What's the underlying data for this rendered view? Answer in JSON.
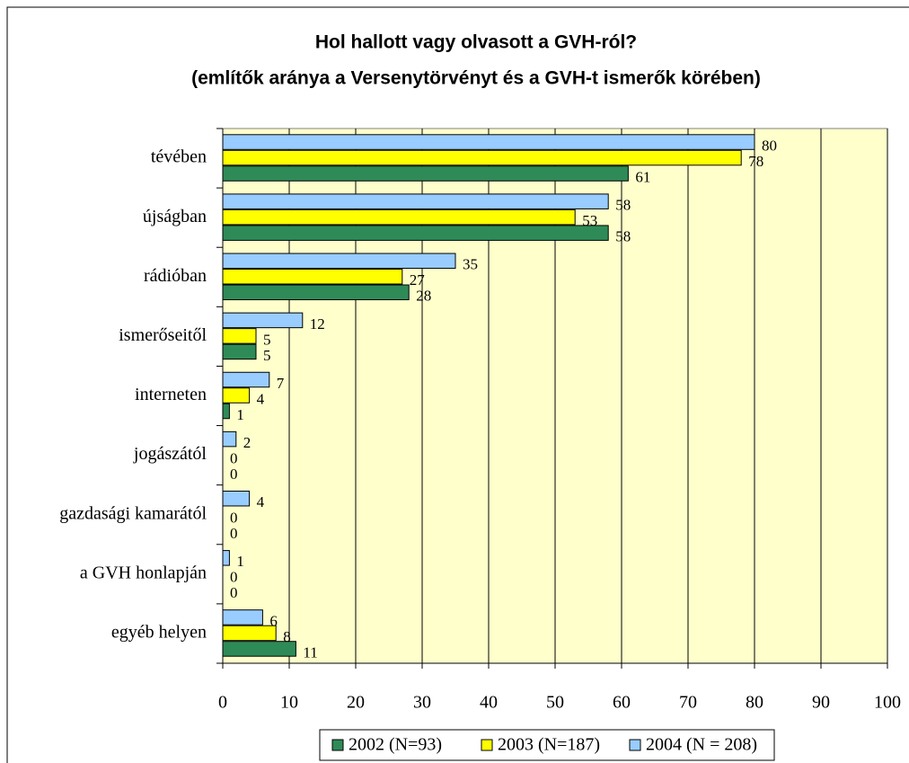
{
  "chart_data": {
    "type": "bar",
    "orientation": "horizontal",
    "title": "Hol hallott vagy olvasott a GVH-ról?",
    "subtitle": "(említők aránya a Versenytörvényt és a GVH-t ismerők körében)",
    "categories": [
      "tévében",
      "újságban",
      "rádióban",
      "ismerőseitől",
      "interneten",
      "jogászától",
      "gazdasági kamarától",
      "a GVH honlapján",
      "egyéb helyen"
    ],
    "series": [
      {
        "name": "2002 (N=93)",
        "color": "#2e8b57",
        "values": [
          61,
          58,
          28,
          5,
          1,
          0,
          0,
          0,
          11
        ]
      },
      {
        "name": "2003 (N=187)",
        "color": "#ffff00",
        "values": [
          78,
          53,
          27,
          5,
          4,
          0,
          0,
          0,
          8
        ]
      },
      {
        "name": "2004 (N = 208)",
        "color": "#99ccff",
        "values": [
          80,
          58,
          35,
          12,
          7,
          2,
          4,
          1,
          6
        ]
      }
    ],
    "xlim": [
      0,
      100
    ],
    "xticks": [
      0,
      10,
      20,
      30,
      40,
      50,
      60,
      70,
      80,
      90,
      100
    ],
    "grid": true,
    "plot_background": "#ffffcc",
    "legend": "bottom"
  }
}
